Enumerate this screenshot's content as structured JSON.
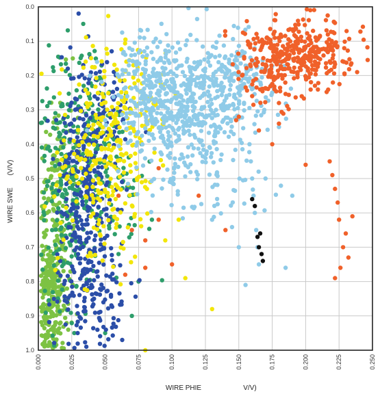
{
  "chart_data": {
    "type": "scatter",
    "title": "",
    "xlabel": "WIRE PHIE",
    "xunit": "V/V)",
    "ylabel": "WIRE SWE",
    "yunit": "(V/V)",
    "xlim": [
      0.0,
      0.25
    ],
    "ylim": [
      0.0,
      1.0
    ],
    "y_inverted": true,
    "grid": true,
    "x_ticks": [
      "0.000",
      "0.025",
      "0.050",
      "0.075",
      "0.100",
      "0.125",
      "0.150",
      "0.175",
      "0.200",
      "0.225",
      "0.250"
    ],
    "y_ticks": [
      "0.0",
      "0.1",
      "0.2",
      "0.3",
      "0.4",
      "0.5",
      "0.6",
      "0.7",
      "0.8",
      "0.9",
      "1.0"
    ],
    "series": [
      {
        "color": "#7dc243",
        "clusters": [
          {
            "cx": 0.01,
            "cy": 0.85,
            "sx": 0.005,
            "sy": 0.09,
            "n": 220
          },
          {
            "cx": 0.012,
            "cy": 0.65,
            "sx": 0.006,
            "sy": 0.12,
            "n": 120
          },
          {
            "cx": 0.018,
            "cy": 0.45,
            "sx": 0.007,
            "sy": 0.12,
            "n": 60
          }
        ],
        "points": []
      },
      {
        "color": "#2e9e6b",
        "clusters": [
          {
            "cx": 0.02,
            "cy": 0.55,
            "sx": 0.01,
            "sy": 0.18,
            "n": 200
          },
          {
            "cx": 0.04,
            "cy": 0.35,
            "sx": 0.012,
            "sy": 0.1,
            "n": 100
          },
          {
            "cx": 0.055,
            "cy": 0.55,
            "sx": 0.015,
            "sy": 0.12,
            "n": 60
          }
        ],
        "points": [
          [
            0.06,
            0.72
          ],
          [
            0.075,
            0.8
          ],
          [
            0.085,
            0.62
          ],
          [
            0.07,
            0.9
          ],
          [
            0.05,
            0.95
          ]
        ]
      },
      {
        "color": "#2b4ea8",
        "clusters": [
          {
            "cx": 0.035,
            "cy": 0.55,
            "sx": 0.011,
            "sy": 0.2,
            "n": 300
          },
          {
            "cx": 0.04,
            "cy": 0.85,
            "sx": 0.012,
            "sy": 0.08,
            "n": 100
          },
          {
            "cx": 0.05,
            "cy": 0.3,
            "sx": 0.008,
            "sy": 0.08,
            "n": 60
          }
        ],
        "points": []
      },
      {
        "color": "#f2e60a",
        "clusters": [
          {
            "cx": 0.05,
            "cy": 0.45,
            "sx": 0.018,
            "sy": 0.15,
            "n": 250
          },
          {
            "cx": 0.07,
            "cy": 0.3,
            "sx": 0.015,
            "sy": 0.1,
            "n": 80
          }
        ],
        "points": [
          [
            0.11,
            0.79
          ],
          [
            0.095,
            0.68
          ],
          [
            0.13,
            0.88
          ],
          [
            0.105,
            0.62
          ],
          [
            0.08,
            1.0
          ]
        ]
      },
      {
        "color": "#8fcbe8",
        "clusters": [
          {
            "cx": 0.11,
            "cy": 0.28,
            "sx": 0.025,
            "sy": 0.09,
            "n": 500
          },
          {
            "cx": 0.085,
            "cy": 0.24,
            "sx": 0.015,
            "sy": 0.07,
            "n": 120
          },
          {
            "cx": 0.15,
            "cy": 0.2,
            "sx": 0.015,
            "sy": 0.06,
            "n": 120
          },
          {
            "cx": 0.125,
            "cy": 0.48,
            "sx": 0.025,
            "sy": 0.08,
            "n": 80
          }
        ],
        "points": [
          [
            0.158,
            0.4
          ],
          [
            0.159,
            0.45
          ],
          [
            0.16,
            0.5
          ],
          [
            0.161,
            0.55
          ],
          [
            0.162,
            0.6
          ],
          [
            0.163,
            0.65
          ],
          [
            0.164,
            0.7
          ],
          [
            0.165,
            0.75
          ],
          [
            0.13,
            0.62
          ],
          [
            0.15,
            0.7
          ],
          [
            0.185,
            0.76
          ],
          [
            0.19,
            0.55
          ],
          [
            0.155,
            0.81
          ],
          [
            0.175,
            0.25
          ],
          [
            0.18,
            0.35
          ],
          [
            0.17,
            0.5
          ]
        ]
      },
      {
        "color": "#f0612a",
        "clusters": [
          {
            "cx": 0.195,
            "cy": 0.13,
            "sx": 0.02,
            "sy": 0.05,
            "n": 330
          },
          {
            "cx": 0.175,
            "cy": 0.2,
            "sx": 0.012,
            "sy": 0.05,
            "n": 60
          }
        ],
        "points": [
          [
            0.225,
            0.62
          ],
          [
            0.23,
            0.66
          ],
          [
            0.228,
            0.7
          ],
          [
            0.232,
            0.73
          ],
          [
            0.226,
            0.76
          ],
          [
            0.222,
            0.79
          ],
          [
            0.235,
            0.61
          ],
          [
            0.22,
            0.49
          ],
          [
            0.222,
            0.53
          ],
          [
            0.224,
            0.57
          ],
          [
            0.218,
            0.45
          ],
          [
            0.2,
            0.46
          ],
          [
            0.09,
            0.62
          ],
          [
            0.1,
            0.75
          ],
          [
            0.08,
            0.68
          ],
          [
            0.07,
            0.65
          ],
          [
            0.165,
            0.36
          ],
          [
            0.18,
            0.34
          ],
          [
            0.175,
            0.4
          ],
          [
            0.15,
            0.32
          ],
          [
            0.12,
            0.55
          ],
          [
            0.16,
            0.26
          ],
          [
            0.18,
            0.28
          ],
          [
            0.148,
            0.33
          ],
          [
            0.09,
            0.47
          ],
          [
            0.065,
            0.78
          ],
          [
            0.14,
            0.65
          ],
          [
            0.08,
            0.76
          ],
          [
            0.06,
            0.55
          ]
        ]
      },
      {
        "color": "#111111",
        "clusters": [],
        "points": [
          [
            0.16,
            0.56
          ],
          [
            0.162,
            0.58
          ],
          [
            0.164,
            0.67
          ],
          [
            0.165,
            0.7
          ],
          [
            0.167,
            0.72
          ],
          [
            0.168,
            0.74
          ],
          [
            0.166,
            0.66
          ]
        ]
      }
    ]
  }
}
